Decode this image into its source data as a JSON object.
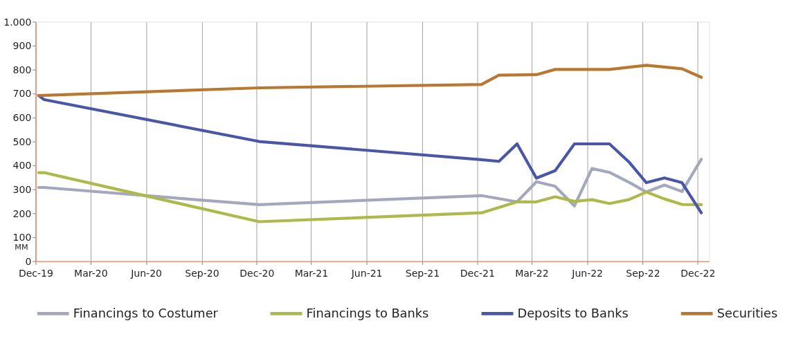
{
  "chart_data": {
    "type": "line",
    "ylabel": "MM",
    "xlim": [
      "2019-12-01",
      "2022-12-20"
    ],
    "xticks": [
      {
        "value": "2019-12-01",
        "label": "Dec-19"
      },
      {
        "value": "2020-03-01",
        "label": "Mar-20"
      },
      {
        "value": "2020-06-01",
        "label": "Jun-20"
      },
      {
        "value": "2020-09-01",
        "label": "Sep-20"
      },
      {
        "value": "2020-12-01",
        "label": "Dec-20"
      },
      {
        "value": "2021-03-01",
        "label": "Mar-21"
      },
      {
        "value": "2021-06-01",
        "label": "Jun-21"
      },
      {
        "value": "2021-09-01",
        "label": "Sep-21"
      },
      {
        "value": "2021-12-01",
        "label": "Dec-21"
      },
      {
        "value": "2022-03-01",
        "label": "Mar-22"
      },
      {
        "value": "2022-06-01",
        "label": "Jun-22"
      },
      {
        "value": "2022-09-01",
        "label": "Sep-22"
      },
      {
        "value": "2022-12-01",
        "label": "Dec-22"
      }
    ],
    "ylim": [
      0,
      1000
    ],
    "yticks": [
      0,
      100,
      200,
      300,
      400,
      500,
      600,
      700,
      800,
      900,
      {
        "value": 1000,
        "label": "1.000"
      }
    ],
    "grid": "x",
    "legend": "bottom",
    "marker": "none",
    "line_style": "solid",
    "series": [
      {
        "name": "Financings to Costumer",
        "color": "#a4a8bd",
        "x": [
          "2019-12-06",
          "2019-12-15",
          "2020-12-05",
          "2021-12-08",
          "2022-02-05",
          "2022-03-09",
          "2022-04-09",
          "2022-05-11",
          "2022-06-09",
          "2022-07-08",
          "2022-08-09",
          "2022-09-07",
          "2022-10-07",
          "2022-11-05",
          "2022-12-07"
        ],
        "values": [
          308,
          308,
          236,
          274,
          248,
          332,
          313,
          231,
          387,
          371,
          330,
          289,
          318,
          291,
          426
        ]
      },
      {
        "name": "Financings to Banks",
        "color": "#adb94b",
        "x": [
          "2019-12-06",
          "2019-12-15",
          "2020-12-05",
          "2021-12-08",
          "2022-02-05",
          "2022-03-09",
          "2022-04-09",
          "2022-05-11",
          "2022-06-09",
          "2022-07-08",
          "2022-08-09",
          "2022-09-07",
          "2022-10-07",
          "2022-11-05",
          "2022-12-07"
        ],
        "values": [
          370,
          370,
          165,
          202,
          248,
          248,
          269,
          250,
          257,
          241,
          257,
          289,
          260,
          237,
          236
        ]
      },
      {
        "name": "Deposits to Banks",
        "color": "#4a56a6",
        "x": [
          "2019-12-06",
          "2019-12-15",
          "2020-12-05",
          "2021-12-08",
          "2022-01-06",
          "2022-02-05",
          "2022-03-09",
          "2022-04-09",
          "2022-05-11",
          "2022-06-09",
          "2022-07-08",
          "2022-08-09",
          "2022-09-07",
          "2022-10-07",
          "2022-11-05",
          "2022-12-07"
        ],
        "values": [
          692,
          675,
          500,
          424,
          417,
          490,
          347,
          378,
          490,
          490,
          490,
          415,
          328,
          348,
          328,
          202
        ]
      },
      {
        "name": "Securities",
        "color": "#b97831",
        "x": [
          "2019-12-06",
          "2020-12-05",
          "2021-12-08",
          "2022-01-06",
          "2022-03-09",
          "2022-04-09",
          "2022-07-08",
          "2022-09-07",
          "2022-11-05",
          "2022-12-07"
        ],
        "values": [
          692,
          724,
          738,
          777,
          779,
          801,
          801,
          818,
          804,
          768
        ]
      }
    ]
  }
}
